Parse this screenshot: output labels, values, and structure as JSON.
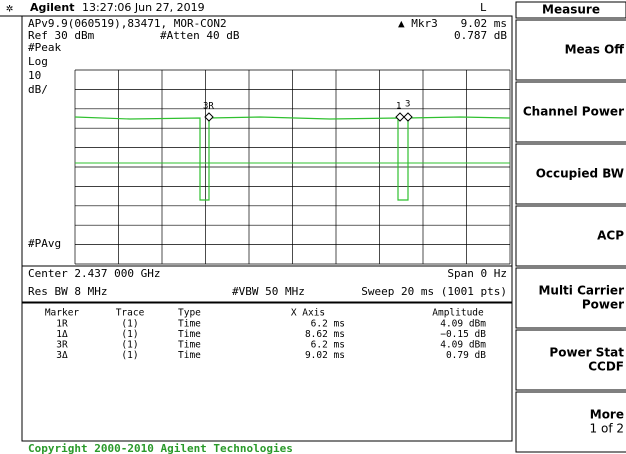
{
  "header": {
    "brand": "Agilent",
    "timestamp": "13:27:06  Jun 27, 2019",
    "mode": "L"
  },
  "info": {
    "id": "APv9.9(060519),83471, MOR-CON2",
    "marker": "▲ Mkr3",
    "marker_x": "9.02 ms",
    "ref": "Ref 30 dBm",
    "atten": "#Atten 40 dB",
    "marker_y": "0.787 dB",
    "detector": "#Peak",
    "scale_type": "Log",
    "scale_value": "10",
    "scale_unit": "dB/",
    "average": "#PAvg",
    "marker_labels": [
      "3R",
      "1",
      "3"
    ]
  },
  "settings": {
    "center": "Center 2.437 000 GHz",
    "span": "Span 0 Hz",
    "rbw": "Res BW 8 MHz",
    "vbw": "#VBW 50 MHz",
    "sweep": "Sweep 20 ms (1001 pts)"
  },
  "table": {
    "columns": [
      "Marker",
      "Trace",
      "Type",
      "X Axis",
      "Amplitude"
    ],
    "rows": [
      [
        "1R",
        "(1)",
        "Time",
        "6.2 ms",
        "4.09 dBm"
      ],
      [
        "1Δ",
        "(1)",
        "Time",
        "8.62 ms",
        "−0.15 dB"
      ],
      [
        "3R",
        "(1)",
        "Time",
        "6.2 ms",
        "4.09 dBm"
      ],
      [
        "3Δ",
        "(1)",
        "Time",
        "9.02 ms",
        "0.79 dB"
      ]
    ]
  },
  "footer": "Copyright 2000-2010 Agilent Technologies",
  "menu": {
    "title": "Measure",
    "keys": [
      [
        "Meas Off"
      ],
      [
        "Channel Power"
      ],
      [
        "Occupied BW"
      ],
      [
        "ACP"
      ],
      [
        "Multi Carrier",
        "Power"
      ],
      [
        "Power Stat",
        "CCDF"
      ],
      [
        "More",
        "1 of 2"
      ]
    ]
  }
}
